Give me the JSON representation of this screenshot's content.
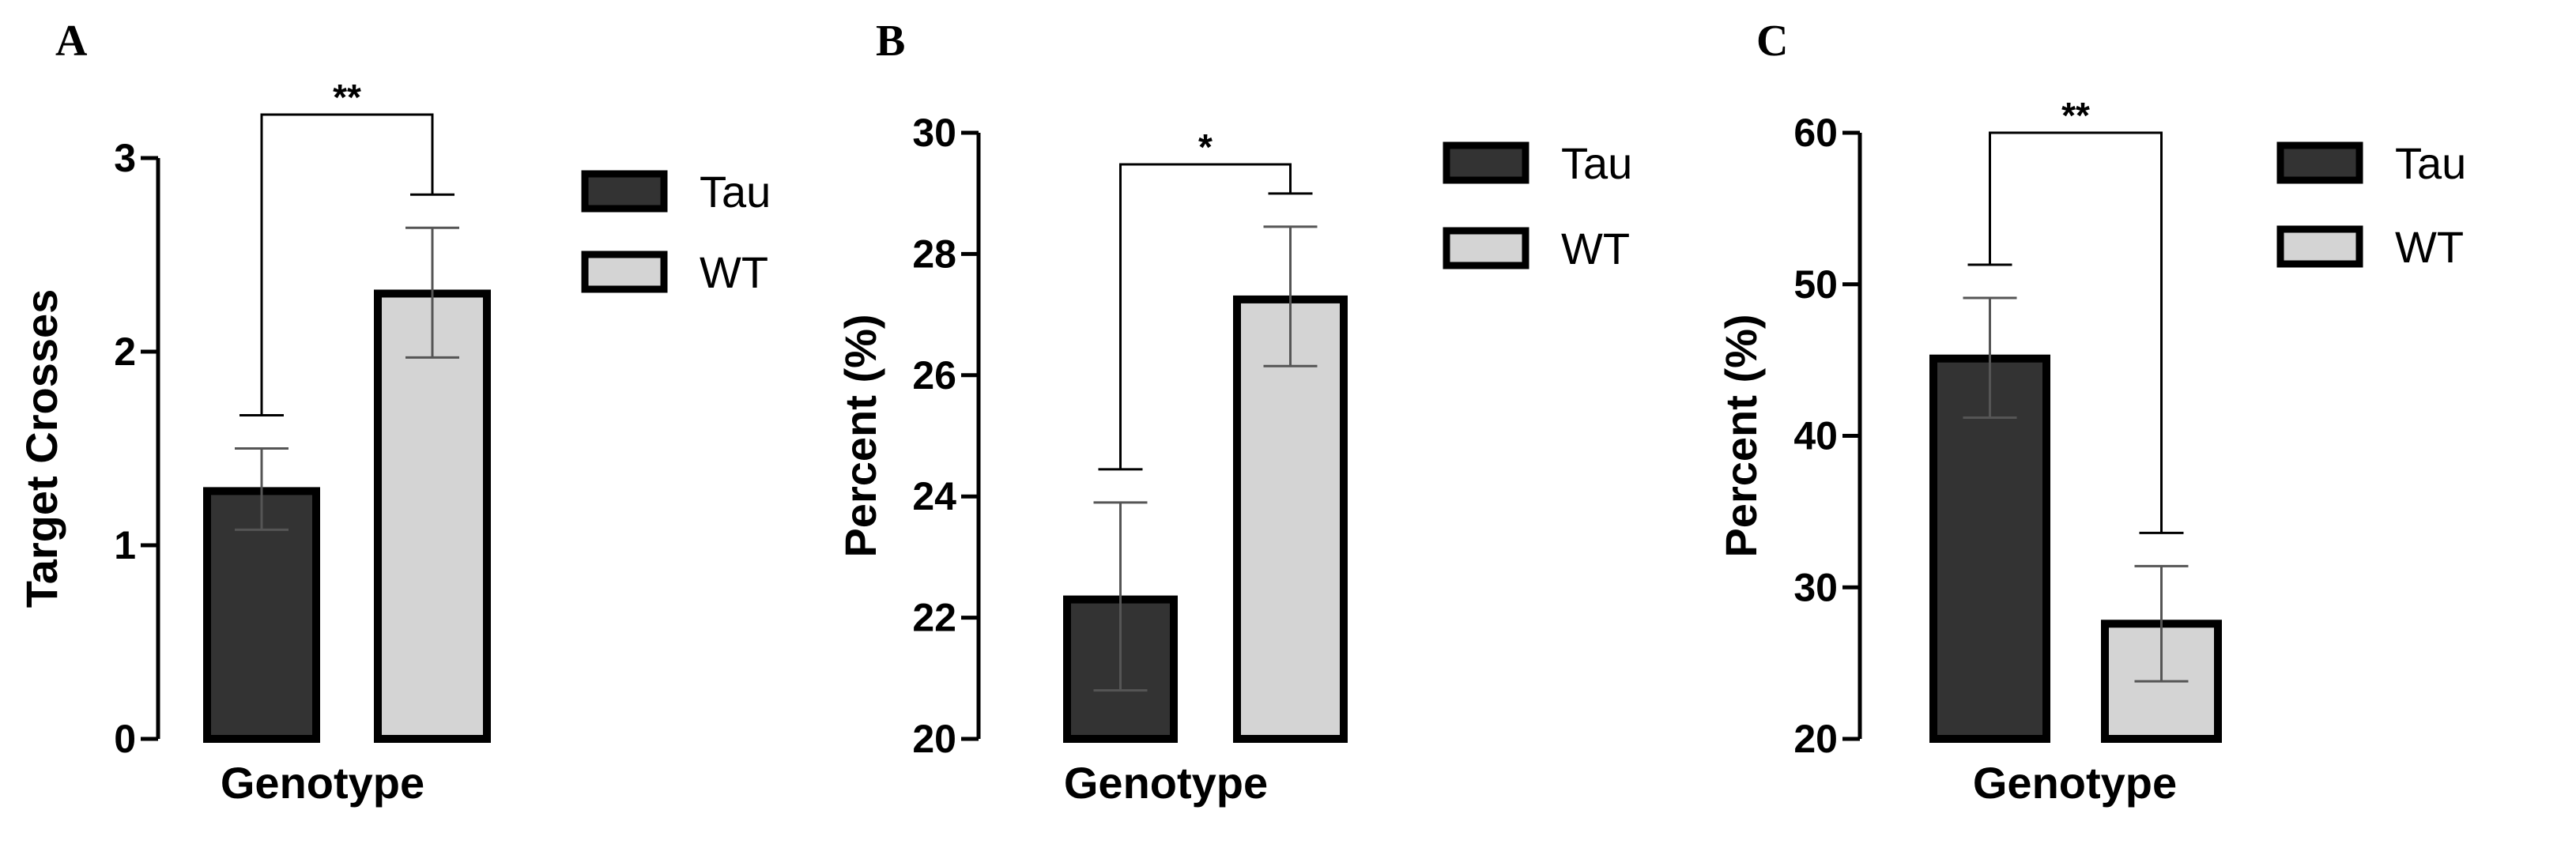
{
  "chart_data": [
    {
      "panel": "A",
      "type": "bar",
      "categories": [
        "Tau",
        "WT"
      ],
      "values": [
        1.28,
        2.3
      ],
      "errors_upper": [
        1.5,
        2.64
      ],
      "errors_lower": [
        1.08,
        1.97
      ],
      "title": "",
      "xlabel": "Genotype",
      "ylabel": "Target Crosses",
      "ylim": [
        0,
        3
      ],
      "yticks": [
        "0",
        "1",
        "2",
        "3"
      ],
      "legend": [
        "Tau",
        "WT"
      ],
      "legend_position": "right",
      "significance": "**",
      "colors": [
        "#333333",
        "#d4d4d4"
      ]
    },
    {
      "panel": "B",
      "type": "bar",
      "categories": [
        "Tau",
        "WT"
      ],
      "values": [
        22.3,
        27.25
      ],
      "errors_upper": [
        23.9,
        28.45
      ],
      "errors_lower": [
        20.8,
        26.15
      ],
      "title": "",
      "xlabel": "Genotype",
      "ylabel": "Percent (%)",
      "ylim": [
        20,
        30
      ],
      "yticks": [
        "20",
        "22",
        "24",
        "26",
        "28",
        "30"
      ],
      "legend": [
        "Tau",
        "WT"
      ],
      "legend_position": "right",
      "significance": "*",
      "colors": [
        "#333333",
        "#d4d4d4"
      ]
    },
    {
      "panel": "C",
      "type": "bar",
      "categories": [
        "Tau",
        "WT"
      ],
      "values": [
        45.1,
        27.6
      ],
      "errors_upper": [
        49.1,
        31.4
      ],
      "errors_lower": [
        41.2,
        23.8
      ],
      "title": "",
      "xlabel": "Genotype",
      "ylabel": "Percent (%)",
      "ylim": [
        20,
        60
      ],
      "yticks": [
        "20",
        "30",
        "40",
        "50",
        "60"
      ],
      "legend": [
        "Tau",
        "WT"
      ],
      "legend_position": "right",
      "significance": "**",
      "colors": [
        "#333333",
        "#d4d4d4"
      ]
    }
  ]
}
